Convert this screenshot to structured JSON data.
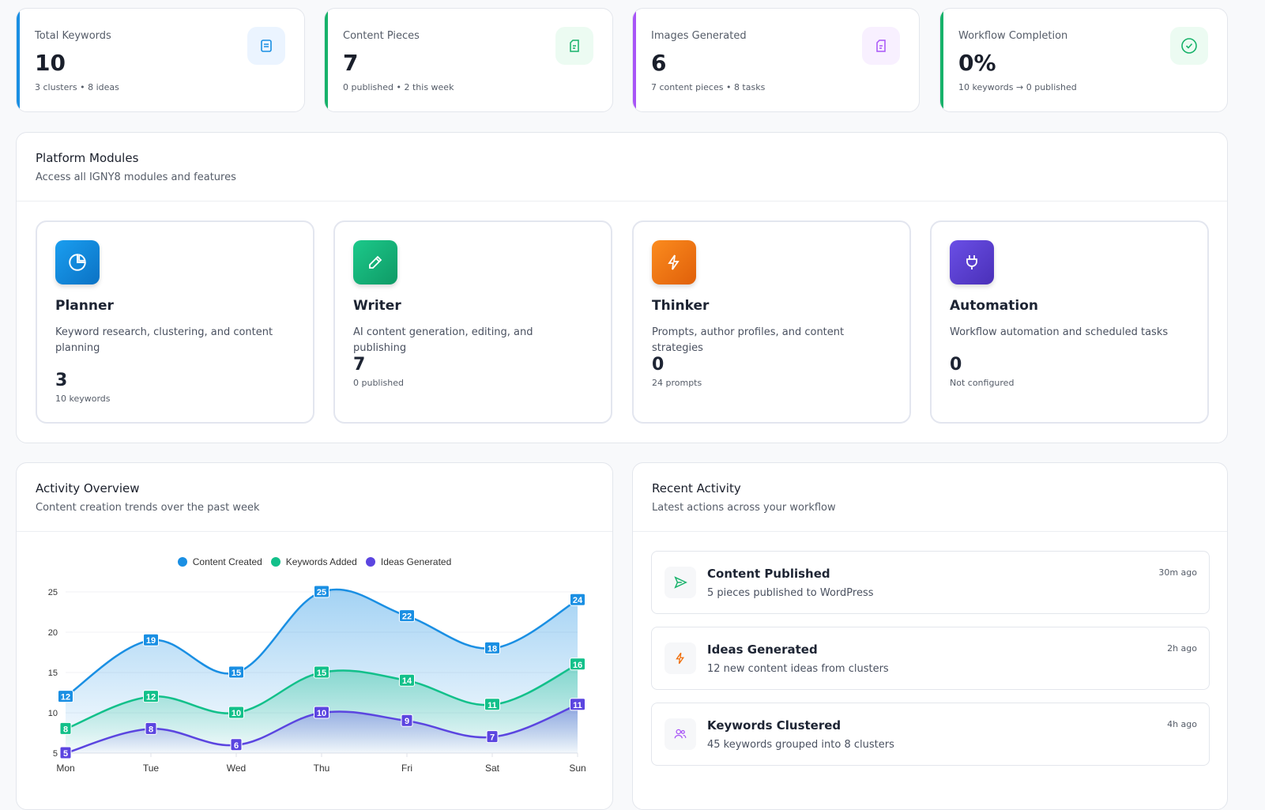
{
  "stats": [
    {
      "label": "Total Keywords",
      "value": "10",
      "sub": "3 clusters • 8 ideas",
      "icon": "list-icon",
      "color": "#1a8fe3",
      "bg": "#ebf4ff"
    },
    {
      "label": "Content Pieces",
      "value": "7",
      "sub": "0 published • 2 this week",
      "icon": "file-icon",
      "color": "#17b26a",
      "bg": "#ecfbf2"
    },
    {
      "label": "Images Generated",
      "value": "6",
      "sub": "7 content pieces • 8 tasks",
      "icon": "file-icon",
      "color": "#a855f7",
      "bg": "#f8f0ff"
    },
    {
      "label": "Workflow Completion",
      "value": "0%",
      "sub": "10 keywords → 0 published",
      "icon": "check-circle-icon",
      "color": "#17b26a",
      "bg": "#ecfbf2"
    }
  ],
  "modules": {
    "title": "Platform Modules",
    "subtitle": "Access all IGNY8 modules and features",
    "items": [
      {
        "name": "Planner",
        "desc": "Keyword research, clustering, and content planning",
        "value": "3",
        "sub": "10 keywords",
        "icon": "pie-chart-icon",
        "color": "#0f86d8"
      },
      {
        "name": "Writer",
        "desc": "AI content generation, editing, and publishing",
        "value": "7",
        "sub": "0 published",
        "icon": "pencil-icon",
        "color": "#12a874"
      },
      {
        "name": "Thinker",
        "desc": "Prompts, author profiles, and content strategies",
        "value": "0",
        "sub": "24 prompts",
        "icon": "bolt-icon",
        "color": "#f06e0a"
      },
      {
        "name": "Automation",
        "desc": "Workflow automation and scheduled tasks",
        "value": "0",
        "sub": "Not configured",
        "icon": "plug-icon",
        "color": "#5b3fd4"
      }
    ]
  },
  "activity": {
    "title": "Activity Overview",
    "subtitle": "Content creation trends over the past week"
  },
  "chart_data": {
    "type": "area",
    "categories": [
      "Mon",
      "Tue",
      "Wed",
      "Thu",
      "Fri",
      "Sat",
      "Sun"
    ],
    "series": [
      {
        "name": "Content Created",
        "color": "#1a8fe3",
        "values": [
          12,
          19,
          15,
          25,
          22,
          18,
          24
        ]
      },
      {
        "name": "Keywords Added",
        "color": "#12c08a",
        "values": [
          8,
          12,
          10,
          15,
          14,
          11,
          16
        ]
      },
      {
        "name": "Ideas Generated",
        "color": "#5b45e0",
        "values": [
          5,
          8,
          6,
          10,
          9,
          7,
          11
        ]
      }
    ],
    "yticks": [
      5,
      10,
      15,
      20,
      25
    ],
    "ylim": [
      5,
      25
    ],
    "legend": "top",
    "grid": true,
    "data_labels": true
  },
  "recent": {
    "title": "Recent Activity",
    "subtitle": "Latest actions across your workflow",
    "items": [
      {
        "title": "Content Published",
        "desc": "5 pieces published to WordPress",
        "time": "30m ago",
        "icon": "send-icon",
        "color": "#17b26a"
      },
      {
        "title": "Ideas Generated",
        "desc": "12 new content ideas from clusters",
        "time": "2h ago",
        "icon": "bolt-icon",
        "color": "#f06e0a"
      },
      {
        "title": "Keywords Clustered",
        "desc": "45 keywords grouped into 8 clusters",
        "time": "4h ago",
        "icon": "users-icon",
        "color": "#a855f7"
      }
    ]
  }
}
